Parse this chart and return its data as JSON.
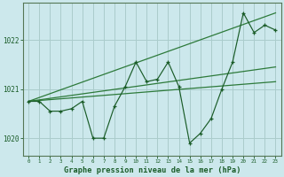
{
  "bg_color": "#cce8ec",
  "grid_color": "#aacccc",
  "line_color_dark": "#1a5c28",
  "line_color_mid": "#2d7a3a",
  "xlabel": "Graphe pression niveau de la mer (hPa)",
  "ylim": [
    1019.65,
    1022.75
  ],
  "xlim": [
    -0.5,
    23.5
  ],
  "yticks": [
    1020,
    1021,
    1022
  ],
  "xticks": [
    0,
    1,
    2,
    3,
    4,
    5,
    6,
    7,
    8,
    9,
    10,
    11,
    12,
    13,
    14,
    15,
    16,
    17,
    18,
    19,
    20,
    21,
    22,
    23
  ],
  "series1_x": [
    0,
    1,
    2,
    3,
    4,
    5,
    6,
    7,
    8,
    9,
    10,
    11,
    12,
    13,
    14,
    15,
    16,
    17,
    18,
    19,
    20,
    21,
    22,
    23
  ],
  "series1_y": [
    1020.75,
    1020.75,
    1020.55,
    1020.55,
    1020.6,
    1020.75,
    1020.0,
    1020.0,
    1020.65,
    1021.05,
    1021.55,
    1021.15,
    1021.2,
    1021.55,
    1021.05,
    1019.9,
    1020.1,
    1020.4,
    1021.0,
    1021.55,
    1022.55,
    1022.15,
    1022.3,
    1022.2
  ],
  "series2_x": [
    0,
    23
  ],
  "series2_y": [
    1020.75,
    1021.45
  ],
  "series3_x": [
    0,
    23
  ],
  "series3_y": [
    1020.75,
    1022.55
  ],
  "series4_x": [
    0,
    23
  ],
  "series4_y": [
    1020.75,
    1021.15
  ]
}
